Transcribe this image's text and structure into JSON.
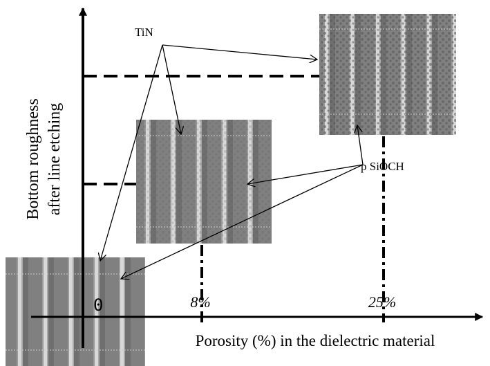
{
  "axes": {
    "x_label": "Porosity (%) in the dielectric material",
    "y_label": [
      "Bottom roughness",
      "after line etching"
    ],
    "origin_label": "0",
    "ticks": [
      "8%",
      "25%"
    ]
  },
  "annotations": {
    "tin": "TiN",
    "p_sioch": "p SiOCH"
  }
}
